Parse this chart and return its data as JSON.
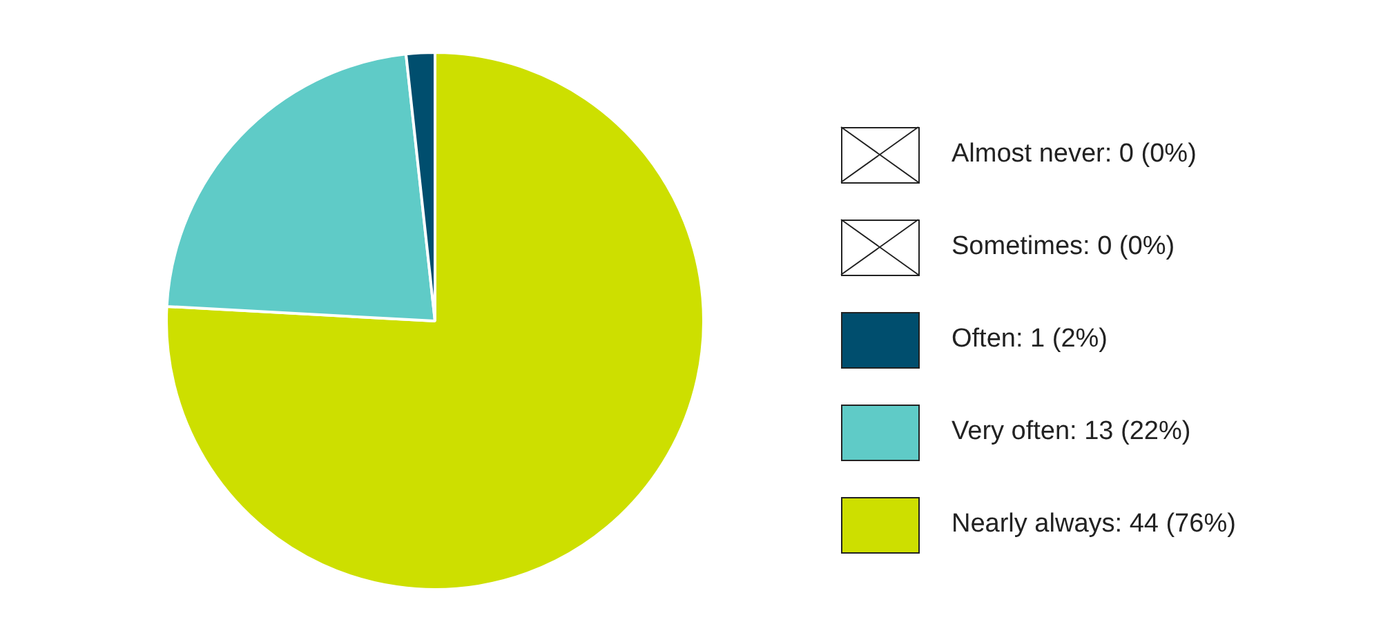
{
  "chart_data": {
    "type": "pie",
    "categories": [
      "Almost never: 0 (0%)",
      "Sometimes: 0 (0%)",
      "Often: 1 (2%)",
      "Very often: 13 (22%)",
      "Nearly always: 44 (76%)"
    ],
    "values": [
      0,
      0,
      1,
      13,
      44
    ],
    "colors": [
      "#ffffff",
      "#ffffff",
      "#004e6e",
      "#5fcbc7",
      "#cddf00"
    ],
    "legend": "right"
  }
}
